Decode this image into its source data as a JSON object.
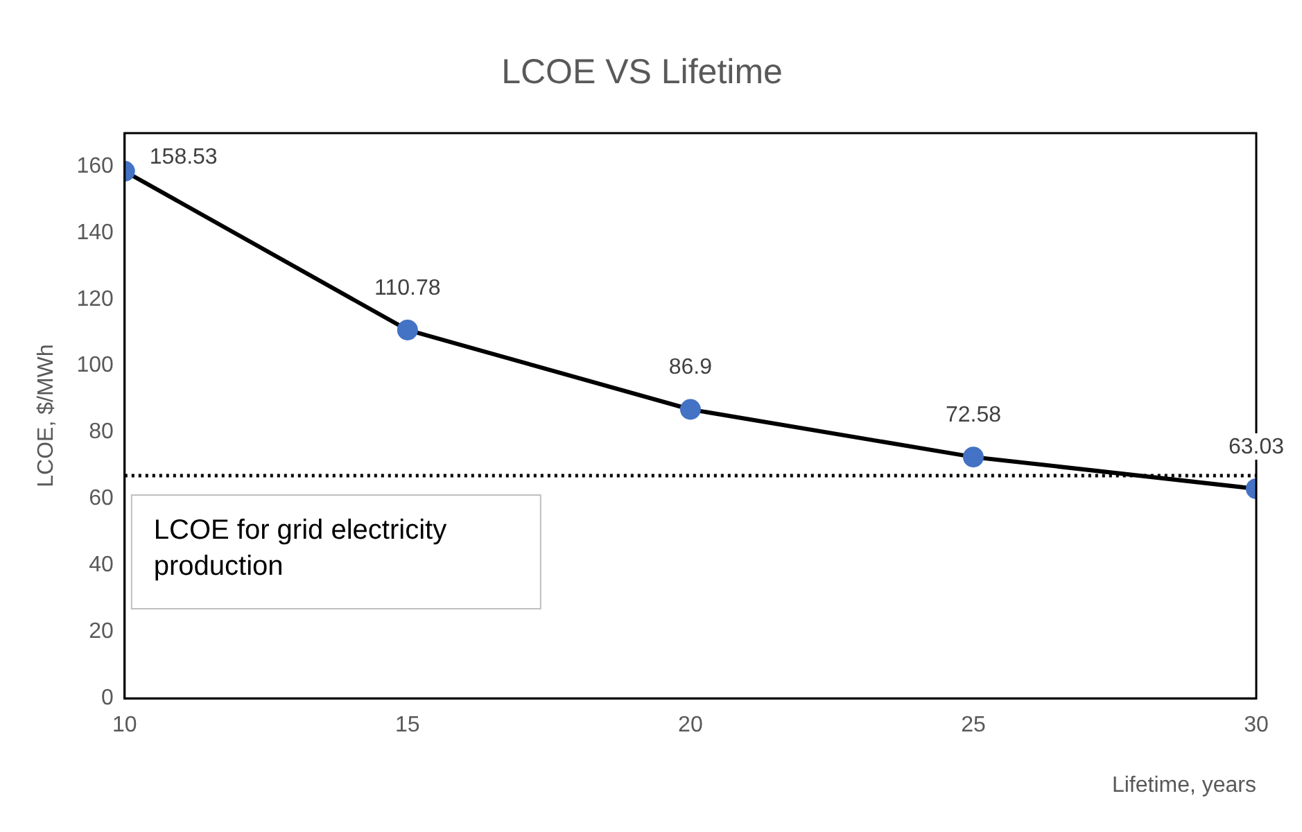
{
  "chart_data": {
    "type": "line",
    "title": "LCOE VS Lifetime",
    "xlabel": "Lifetime, years",
    "ylabel": "LCOE, $/MWh",
    "x": [
      10,
      15,
      20,
      25,
      30
    ],
    "series": [
      {
        "color": "#4472c4",
        "values": [
          158.53,
          110.78,
          86.9,
          72.58,
          63.03
        ]
      }
    ],
    "marker": "circle",
    "data_labels": true,
    "grid": false,
    "legend": false,
    "xlim": [
      10,
      30
    ],
    "xticks": [
      10,
      15,
      20,
      25,
      30
    ],
    "ylim": [
      0,
      170
    ],
    "yticks": [
      0,
      20,
      40,
      60,
      80,
      100,
      120,
      140,
      160
    ],
    "ref_lines": [
      {
        "axis": "y",
        "value": 67,
        "label": "LCOE for grid electricity production",
        "color": "#000000",
        "line_style": "dotted"
      }
    ]
  }
}
